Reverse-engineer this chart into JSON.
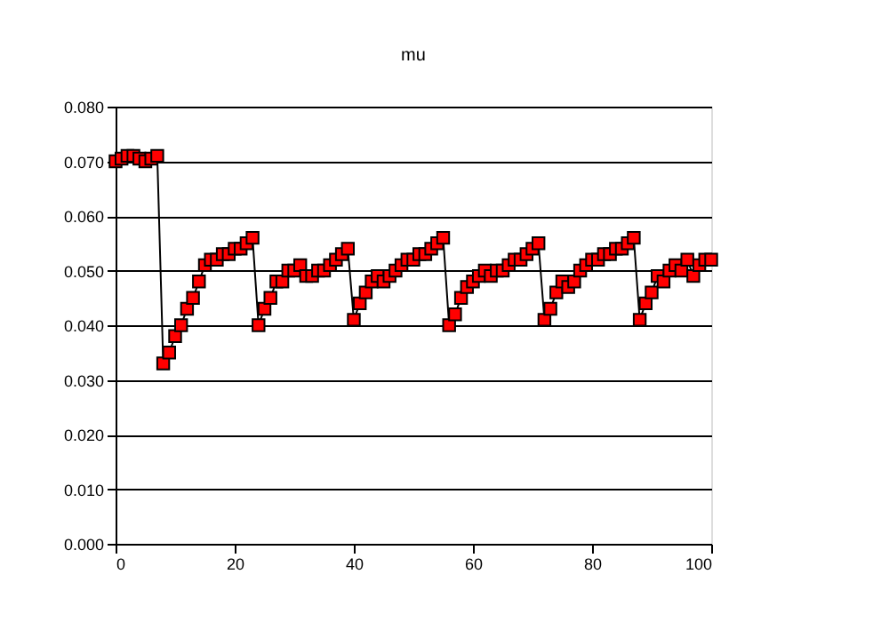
{
  "chart_data": {
    "type": "line",
    "title": "mu",
    "x": [
      0,
      1,
      2,
      3,
      4,
      5,
      6,
      7,
      8,
      9,
      10,
      11,
      12,
      13,
      14,
      15,
      16,
      17,
      18,
      19,
      20,
      21,
      22,
      23,
      24,
      25,
      26,
      27,
      28,
      29,
      30,
      31,
      32,
      33,
      34,
      35,
      36,
      37,
      38,
      39,
      40,
      41,
      42,
      43,
      44,
      45,
      46,
      47,
      48,
      49,
      50,
      51,
      52,
      53,
      54,
      55,
      56,
      57,
      58,
      59,
      60,
      61,
      62,
      63,
      64,
      65,
      66,
      67,
      68,
      69,
      70,
      71,
      72,
      73,
      74,
      75,
      76,
      77,
      78,
      79,
      80,
      81,
      82,
      83,
      84,
      85,
      86,
      87,
      88,
      89,
      90,
      91,
      92,
      93,
      94,
      95,
      96,
      97,
      98,
      99,
      100
    ],
    "series": [
      {
        "color": "#ff0000",
        "values": [
          0.07,
          0.0705,
          0.071,
          0.071,
          0.0705,
          0.07,
          0.0705,
          0.071,
          0.033,
          0.035,
          0.038,
          0.04,
          0.043,
          0.045,
          0.048,
          0.051,
          0.052,
          0.052,
          0.053,
          0.053,
          0.054,
          0.054,
          0.055,
          0.056,
          0.04,
          0.043,
          0.045,
          0.048,
          0.048,
          0.05,
          0.05,
          0.051,
          0.049,
          0.049,
          0.05,
          0.05,
          0.051,
          0.052,
          0.053,
          0.054,
          0.041,
          0.044,
          0.046,
          0.048,
          0.049,
          0.048,
          0.049,
          0.05,
          0.051,
          0.052,
          0.052,
          0.053,
          0.053,
          0.054,
          0.055,
          0.056,
          0.04,
          0.042,
          0.045,
          0.047,
          0.048,
          0.049,
          0.05,
          0.049,
          0.05,
          0.05,
          0.051,
          0.052,
          0.052,
          0.053,
          0.054,
          0.055,
          0.041,
          0.043,
          0.046,
          0.048,
          0.047,
          0.048,
          0.05,
          0.051,
          0.052,
          0.052,
          0.053,
          0.053,
          0.054,
          0.054,
          0.055,
          0.056,
          0.041,
          0.044,
          0.046,
          0.049,
          0.048,
          0.05,
          0.051,
          0.05,
          0.052,
          0.049,
          0.051,
          0.052,
          0.052
        ]
      }
    ],
    "xlim": [
      0,
      100
    ],
    "xticks": [
      0,
      20,
      40,
      60,
      80,
      100
    ],
    "ylim": [
      0,
      0.08
    ],
    "yticks": [
      {
        "value": 0,
        "label": "0.000"
      },
      {
        "value": 0.01,
        "label": "0.010"
      },
      {
        "value": 0.02,
        "label": "0.020"
      },
      {
        "value": 0.03,
        "label": "0.030"
      },
      {
        "value": 0.04,
        "label": "0.040"
      },
      {
        "value": 0.05,
        "label": "0.050"
      },
      {
        "value": 0.06,
        "label": "0.060"
      },
      {
        "value": 0.07,
        "label": "0.070"
      },
      {
        "value": 0.08,
        "label": "0.080"
      }
    ],
    "grid": "y",
    "marker": "square",
    "line_style": "solid"
  }
}
